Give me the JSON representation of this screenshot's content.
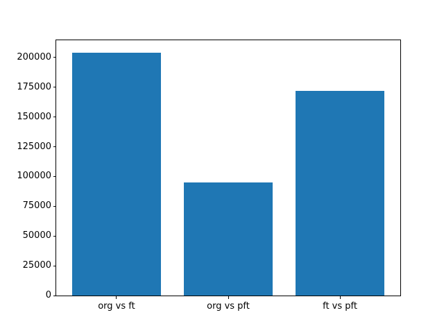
{
  "chart_data": {
    "type": "bar",
    "title": "",
    "categories": [
      "org vs ft",
      "org vs pft",
      "ft vs pft"
    ],
    "values": [
      204000,
      95000,
      172000
    ],
    "bar_color": "#1f77b4",
    "axes_color": "#000000",
    "background_color": "#ffffff",
    "xlabel": "",
    "ylabel": "",
    "ylim": [
      0,
      214500
    ],
    "yticks": [
      0,
      25000,
      50000,
      75000,
      100000,
      125000,
      150000,
      175000,
      200000
    ],
    "ytick_labels": [
      "0",
      "25000",
      "50000",
      "75000",
      "100000",
      "125000",
      "150000",
      "175000",
      "200000"
    ],
    "grid": false,
    "legend": "none"
  }
}
